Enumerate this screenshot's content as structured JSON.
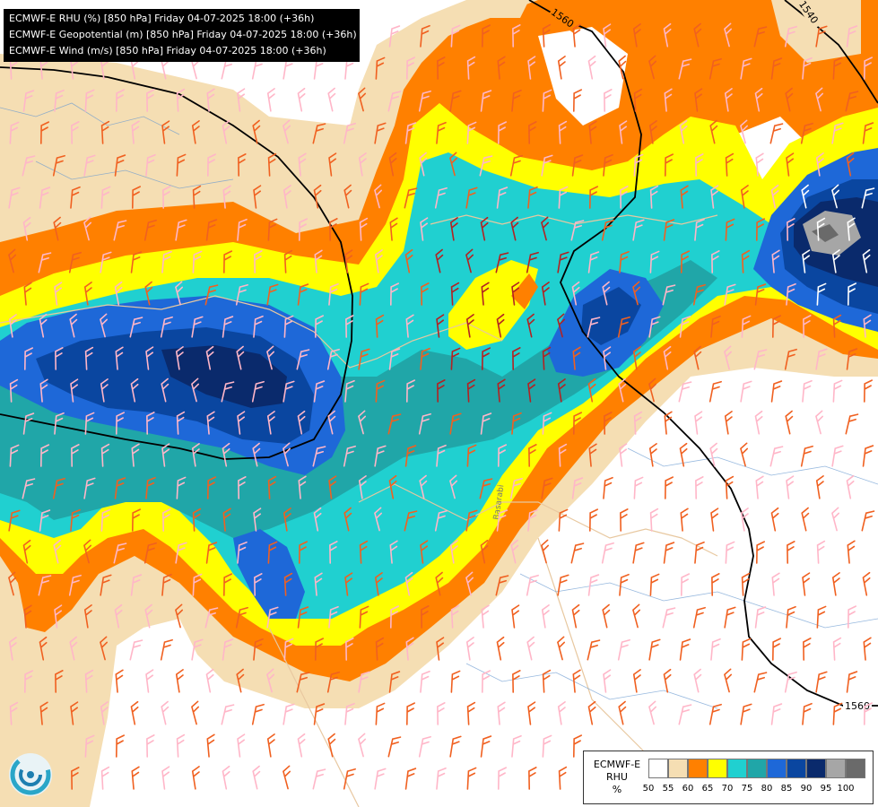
{
  "header": {
    "lines": [
      "ECMWF-E RHU (%) [850 hPa] Friday 04-07-2025 18:00 (+36h)",
      "ECMWF-E Geopotential (m) [850 hPa] Friday 04-07-2025 18:00 (+36h)",
      "ECMWF-E Wind (m/s) [850 hPa] Friday 04-07-2025 18:00 (+36h)"
    ]
  },
  "contours": {
    "label_a": "1560",
    "label_b": "1540",
    "label_c": "1560"
  },
  "place_label": "Basarabi",
  "legend": {
    "title_lines": [
      "ECMWF-E",
      "RHU",
      "%"
    ],
    "colors": [
      "#ffffff",
      "#f5deb3",
      "#ff8000",
      "#ffff00",
      "#20d0d0",
      "#20a6a8",
      "#1e68d8",
      "#0a46a0",
      "#0a2a6c",
      "#a6a6a6",
      "#6a6a6a"
    ],
    "ticks": [
      "50",
      "55",
      "60",
      "65",
      "70",
      "75",
      "80",
      "85",
      "90",
      "95",
      "100"
    ]
  },
  "logo": {
    "icon": "ecmwf-swirl-logo"
  }
}
